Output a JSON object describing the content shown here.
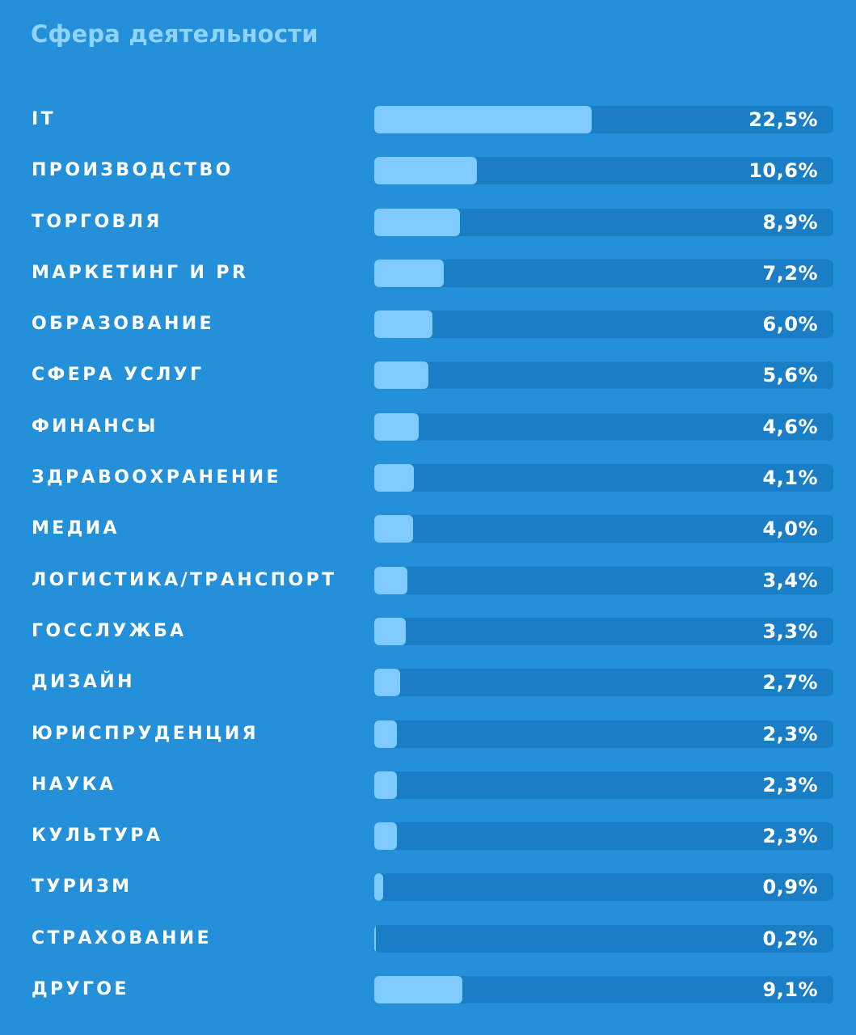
{
  "chart_data": {
    "type": "bar",
    "orientation": "horizontal",
    "title": "Сфера деятельности",
    "unit": "%",
    "xlim": [
      0,
      47.5
    ],
    "colors": {
      "background": "#2590da",
      "track": "#1a7ec7",
      "bar": "#7fcbff",
      "title": "#8fd3ff",
      "text": "#ffffff"
    },
    "categories": [
      "IT",
      "ПРОИЗВОДСТВО",
      "ТОРГОВЛЯ",
      "МАРКЕТИНГ И PR",
      "ОБРАЗОВАНИЕ",
      "СФЕРА УСЛУГ",
      "ФИНАНСЫ",
      "ЗДРАВООХРАНЕНИЕ",
      "МЕДИА",
      "ЛОГИСТИКА/ТРАНСПОРТ",
      "ГОССЛУЖБА",
      "ДИЗАЙН",
      "ЮРИСПРУДЕНЦИЯ",
      "НАУКА",
      "КУЛЬТУРА",
      "ТУРИЗМ",
      "СТРАХОВАНИЕ",
      "ДРУГОЕ"
    ],
    "values": [
      22.5,
      10.6,
      8.9,
      7.2,
      6.0,
      5.6,
      4.6,
      4.1,
      4.0,
      3.4,
      3.3,
      2.7,
      2.3,
      2.3,
      2.3,
      0.9,
      0.2,
      9.1
    ],
    "value_labels": [
      "22,5%",
      "10,6%",
      "8,9%",
      "7,2%",
      "6,0%",
      "5,6%",
      "4,6%",
      "4,1%",
      "4,0%",
      "3,4%",
      "3,3%",
      "2,7%",
      "2,3%",
      "2,3%",
      "2,3%",
      "0,9%",
      "0,2%",
      "9,1%"
    ]
  }
}
